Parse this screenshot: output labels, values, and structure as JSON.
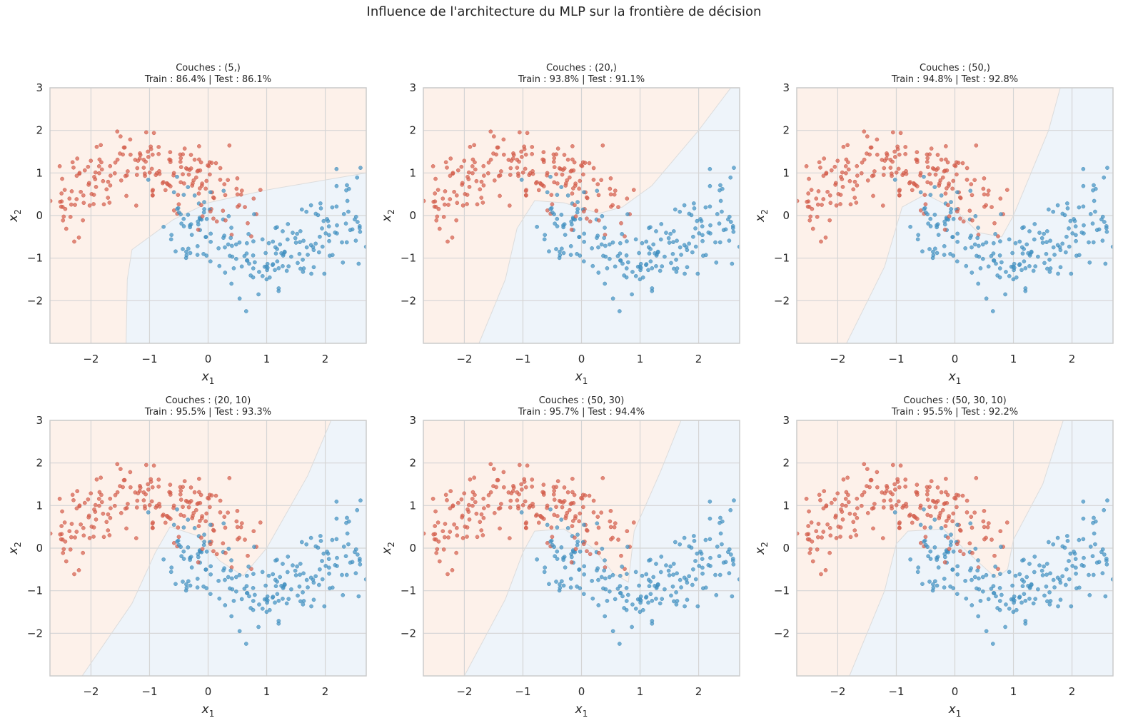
{
  "suptitle": "Influence de l'architecture du MLP sur la frontière de décision",
  "colors": {
    "class0_points": "#d6604d",
    "class1_points": "#4393c3",
    "class0_region": "#fdf1ea",
    "class1_region": "#eef4fa",
    "grid": "#d5d5d5",
    "spine": "#cccccc",
    "text": "#262626"
  },
  "chart_data": [
    {
      "type": "scatter",
      "title_line1": "Couches : (5,)",
      "title_line2": "Train : 86.4% | Test : 86.1%",
      "xlabel": "x1",
      "ylabel": "x2",
      "xlim": [
        -2.7,
        2.7
      ],
      "ylim": [
        -3.0,
        3.0
      ],
      "xticks": [
        -2,
        -1,
        0,
        1,
        2
      ],
      "yticks": [
        -2,
        -1,
        0,
        1,
        2,
        3
      ],
      "boundary": [
        [
          -1.4,
          -3.0
        ],
        [
          -1.38,
          -1.5
        ],
        [
          -1.3,
          -0.8
        ],
        [
          -1.0,
          -0.5
        ],
        [
          -0.6,
          -0.1
        ],
        [
          0.0,
          0.3
        ],
        [
          1.0,
          0.6
        ],
        [
          2.7,
          1.0
        ]
      ]
    },
    {
      "type": "scatter",
      "title_line1": "Couches : (20,)",
      "title_line2": "Train : 93.8% | Test : 91.1%",
      "xlabel": "x1",
      "ylabel": "x2",
      "xlim": [
        -2.7,
        2.7
      ],
      "ylim": [
        -3.0,
        3.0
      ],
      "xticks": [
        -2,
        -1,
        0,
        1,
        2
      ],
      "yticks": [
        -2,
        -1,
        0,
        1,
        2,
        3
      ],
      "boundary": [
        [
          -1.75,
          -3.0
        ],
        [
          -1.3,
          -1.5
        ],
        [
          -1.1,
          -0.3
        ],
        [
          -0.8,
          0.35
        ],
        [
          -0.3,
          0.3
        ],
        [
          0.3,
          0.05
        ],
        [
          0.7,
          0.2
        ],
        [
          1.2,
          0.7
        ],
        [
          2.0,
          2.0
        ],
        [
          2.55,
          3.0
        ]
      ]
    },
    {
      "type": "scatter",
      "title_line1": "Couches : (50,)",
      "title_line2": "Train : 94.8% | Test : 92.8%",
      "xlabel": "x1",
      "ylabel": "x2",
      "xlim": [
        -2.7,
        2.7
      ],
      "ylim": [
        -3.0,
        3.0
      ],
      "xticks": [
        -2,
        -1,
        0,
        1,
        2
      ],
      "yticks": [
        -2,
        -1,
        0,
        1,
        2,
        3
      ],
      "boundary": [
        [
          -1.85,
          -3.0
        ],
        [
          -1.2,
          -1.2
        ],
        [
          -0.9,
          0.2
        ],
        [
          -0.5,
          0.5
        ],
        [
          0.0,
          0.15
        ],
        [
          0.4,
          -0.4
        ],
        [
          0.8,
          -0.5
        ],
        [
          1.0,
          0.0
        ],
        [
          1.6,
          2.0
        ],
        [
          1.8,
          3.0
        ]
      ]
    },
    {
      "type": "scatter",
      "title_line1": "Couches : (20, 10)",
      "title_line2": "Train : 95.5% | Test : 93.3%",
      "xlabel": "x1",
      "ylabel": "x2",
      "xlim": [
        -2.7,
        2.7
      ],
      "ylim": [
        -3.0,
        3.0
      ],
      "xticks": [
        -2,
        -1,
        0,
        1,
        2
      ],
      "yticks": [
        -2,
        -1,
        0,
        1,
        2,
        3
      ],
      "boundary": [
        [
          -2.15,
          -3.0
        ],
        [
          -1.3,
          -1.3
        ],
        [
          -0.9,
          -0.1
        ],
        [
          -0.65,
          0.5
        ],
        [
          -0.2,
          0.3
        ],
        [
          0.2,
          -0.3
        ],
        [
          0.6,
          -0.65
        ],
        [
          1.0,
          0.0
        ],
        [
          1.7,
          1.7
        ],
        [
          2.1,
          3.0
        ]
      ]
    },
    {
      "type": "scatter",
      "title_line1": "Couches : (50, 30)",
      "title_line2": "Train : 95.7% | Test : 94.4%",
      "xlabel": "x1",
      "ylabel": "x2",
      "xlim": [
        -2.7,
        2.7
      ],
      "ylim": [
        -3.0,
        3.0
      ],
      "xticks": [
        -2,
        -1,
        0,
        1,
        2
      ],
      "yticks": [
        -2,
        -1,
        0,
        1,
        2,
        3
      ],
      "boundary": [
        [
          -2.0,
          -3.0
        ],
        [
          -1.3,
          -1.2
        ],
        [
          -1.0,
          -0.1
        ],
        [
          -0.8,
          0.4
        ],
        [
          -0.3,
          0.45
        ],
        [
          0.2,
          0.0
        ],
        [
          0.55,
          -0.6
        ],
        [
          0.8,
          -0.8
        ],
        [
          0.9,
          0.4
        ],
        [
          1.35,
          1.8
        ],
        [
          1.7,
          3.0
        ]
      ]
    },
    {
      "type": "scatter",
      "title_line1": "Couches : (50, 30, 10)",
      "title_line2": "Train : 95.5% | Test : 92.2%",
      "xlabel": "x1",
      "ylabel": "x2",
      "xlim": [
        -2.7,
        2.7
      ],
      "ylim": [
        -3.0,
        3.0
      ],
      "xticks": [
        -2,
        -1,
        0,
        1,
        2
      ],
      "yticks": [
        -2,
        -1,
        0,
        1,
        2,
        3
      ],
      "boundary": [
        [
          -1.8,
          -3.0
        ],
        [
          -1.2,
          -1.0
        ],
        [
          -1.0,
          0.1
        ],
        [
          -0.8,
          0.4
        ],
        [
          -0.2,
          0.45
        ],
        [
          0.3,
          -0.2
        ],
        [
          0.7,
          -0.7
        ],
        [
          0.9,
          -0.5
        ],
        [
          1.0,
          0.2
        ],
        [
          1.5,
          1.5
        ],
        [
          1.85,
          3.0
        ]
      ]
    }
  ]
}
